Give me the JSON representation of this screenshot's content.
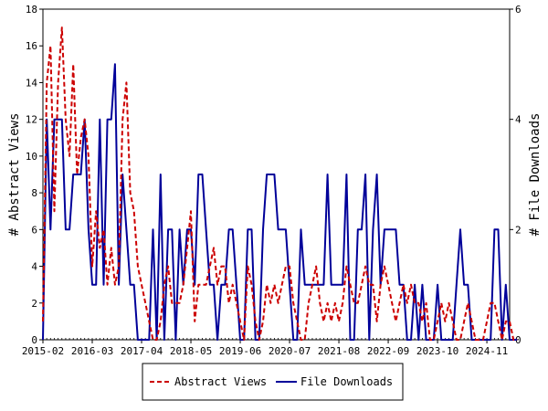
{
  "chart_data": {
    "type": "line",
    "ylabel": "# Abstract Views",
    "y2label": "# File Downloads",
    "ylim": [
      0,
      18
    ],
    "y2lim": [
      0,
      6
    ],
    "yticks": [
      0,
      2,
      4,
      6,
      8,
      10,
      12,
      14,
      16,
      18
    ],
    "y2ticks": [
      0,
      2,
      4,
      6
    ],
    "xlim": [
      0,
      123
    ],
    "xticks": [
      {
        "x": 0,
        "label": "2015-02"
      },
      {
        "x": 13,
        "label": "2016-03"
      },
      {
        "x": 26,
        "label": "2017-04"
      },
      {
        "x": 39,
        "label": "2018-05"
      },
      {
        "x": 52,
        "label": "2019-06"
      },
      {
        "x": 65,
        "label": "2020-07"
      },
      {
        "x": 78,
        "label": "2021-08"
      },
      {
        "x": 91,
        "label": "2022-09"
      },
      {
        "x": 104,
        "label": "2023-10"
      },
      {
        "x": 117,
        "label": "2024-11"
      }
    ],
    "legend_position": "bottom",
    "series": [
      {
        "name": "Abstract Views",
        "axis": "left",
        "color": "#cc0000",
        "style": "dashed",
        "values": [
          1,
          14,
          16,
          7,
          14,
          17,
          12,
          10,
          15,
          9,
          11,
          12,
          10,
          4,
          7,
          5,
          6,
          3,
          5,
          3,
          4,
          12,
          14,
          8,
          7,
          4,
          3,
          2,
          1,
          0,
          0,
          1,
          3,
          4,
          2,
          2,
          2,
          3,
          5,
          7,
          1,
          3,
          3,
          3,
          4,
          5,
          3,
          4,
          4,
          2,
          3,
          2,
          1,
          0,
          4,
          3,
          1,
          0,
          1,
          3,
          2,
          3,
          2,
          3,
          4,
          4,
          2,
          1,
          0,
          0,
          2,
          3,
          4,
          2,
          1,
          2,
          1,
          2,
          1,
          2,
          4,
          3,
          2,
          2,
          3,
          4,
          3,
          3,
          1,
          3,
          4,
          3,
          2,
          1,
          2,
          3,
          2,
          3,
          2,
          2,
          1,
          2,
          0,
          0,
          1,
          2,
          1,
          2,
          1,
          0,
          0,
          1,
          2,
          1,
          0,
          0,
          0,
          1,
          2,
          2,
          1,
          0,
          1,
          1,
          0,
          0
        ]
      },
      {
        "name": "File Downloads",
        "axis": "right",
        "color": "#000099",
        "style": "solid",
        "values": [
          0,
          4,
          2,
          4,
          4,
          4,
          2,
          2,
          3,
          3,
          3,
          4,
          2,
          1,
          1,
          4,
          1,
          4,
          4,
          5,
          1,
          3,
          2,
          1,
          1,
          0,
          0,
          0,
          0,
          2,
          0,
          3,
          0,
          2,
          2,
          0,
          2,
          1,
          2,
          2,
          1,
          3,
          3,
          2,
          1,
          1,
          0,
          1,
          1,
          2,
          2,
          1,
          0,
          0,
          2,
          2,
          0,
          0,
          2,
          3,
          3,
          3,
          2,
          2,
          2,
          1,
          0,
          0,
          2,
          1,
          1,
          1,
          1,
          1,
          1,
          3,
          1,
          1,
          1,
          1,
          3,
          0,
          0,
          2,
          2,
          3,
          0,
          2,
          3,
          1,
          2,
          2,
          2,
          2,
          1,
          1,
          0,
          0,
          1,
          0,
          1,
          0,
          0,
          0,
          1,
          0,
          0,
          0,
          0,
          1,
          2,
          1,
          1,
          0,
          0,
          0,
          0,
          0,
          0,
          2,
          2,
          0,
          1,
          0,
          0,
          0
        ]
      }
    ]
  }
}
